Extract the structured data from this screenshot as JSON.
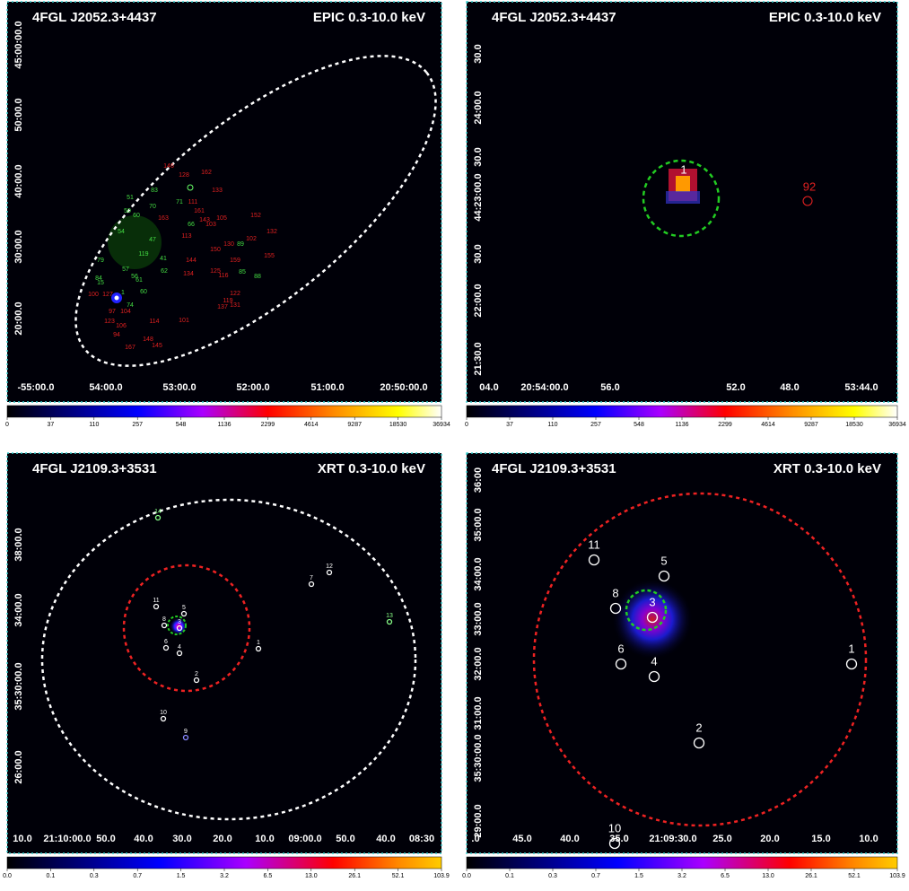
{
  "panels": [
    {
      "title": "4FGL J2052.3+4437",
      "band": "EPIC 0.3-10.0 keV",
      "x_ticks": [
        "-55:00.0",
        "54:00.0",
        "53:00.0",
        "52:00.0",
        "51:00.0",
        "20:50:00.0"
      ],
      "y_ticks": [
        "20:00.0",
        "30:00.0",
        "40:00.0",
        "50:00.0",
        "45:00:00.0"
      ],
      "colorbar": [
        "0",
        "37",
        "110",
        "257",
        "548",
        "1136",
        "2299",
        "4614",
        "9287",
        "18530",
        "36934"
      ],
      "sources": [
        "146",
        "128",
        "162",
        "133",
        "111",
        "161",
        "163",
        "152",
        "143",
        "105",
        "103",
        "113",
        "102",
        "132",
        "150",
        "130",
        "155",
        "159",
        "144",
        "134",
        "125",
        "116",
        "122",
        "119",
        "131",
        "137",
        "114",
        "101",
        "104",
        "106",
        "94",
        "148",
        "145",
        "167",
        "127",
        "123",
        "100",
        "97"
      ],
      "green_sources": [
        "51",
        "70",
        "71",
        "50",
        "60",
        "66",
        "54",
        "47",
        "89",
        "41",
        "119",
        "62",
        "85",
        "88",
        "79",
        "57",
        "84",
        "56",
        "61",
        "60",
        "74",
        "15",
        "83",
        "1"
      ]
    },
    {
      "title": "4FGL J2052.3+4437",
      "band": "EPIC 0.3-10.0 keV",
      "x_ticks": [
        "04.0",
        "20:54:00.0",
        "56.0",
        "52.0",
        "48.0",
        "53:44.0"
      ],
      "y_ticks": [
        "21:30.0",
        "22:00.0",
        "30.0",
        "44:23:00.0",
        "30.0",
        "24:00.0",
        "30.0"
      ],
      "colorbar": [
        "0",
        "37",
        "110",
        "257",
        "548",
        "1136",
        "2299",
        "4614",
        "9287",
        "18530",
        "36934"
      ],
      "sources": [
        "1",
        "92"
      ]
    },
    {
      "title": "4FGL J2109.3+3531",
      "band": "XRT 0.3-10.0 keV",
      "x_ticks": [
        "10.0",
        "21:10:00.0",
        "50.0",
        "40.0",
        "30.0",
        "20.0",
        "10.0",
        "09:00.0",
        "50.0",
        "40.0",
        "08:30"
      ],
      "y_ticks": [
        "26:00.0",
        "35:30:00.0",
        "34:00.0",
        "38:00.0"
      ],
      "colorbar": [
        "0.0",
        "0.1",
        "0.3",
        "0.7",
        "1.5",
        "3.2",
        "6.5",
        "13.0",
        "26.1",
        "52.1",
        "103.9"
      ],
      "sources": [
        "14",
        "11",
        "5",
        "8",
        "3",
        "6",
        "4",
        "2",
        "1",
        "7",
        "12",
        "13",
        "10",
        "9"
      ]
    },
    {
      "title": "4FGL J2109.3+3531",
      "band": "XRT 0.3-10.0 keV",
      "x_ticks": [
        ".0",
        "45.0",
        "40.0",
        "35.0",
        "21:09:30.0",
        "25.0",
        "20.0",
        "15.0",
        "10.0"
      ],
      "y_ticks": [
        "29:00.0",
        "35:30:00.0",
        "31:00.0",
        "32:00.0",
        "33:00.0",
        "34:00.0",
        "35:00.0",
        "36:00"
      ],
      "colorbar": [
        "0.0",
        "0.1",
        "0.3",
        "0.7",
        "1.5",
        "3.2",
        "6.5",
        "13.0",
        "26.1",
        "52.1",
        "103.9"
      ],
      "sources": [
        "11",
        "5",
        "8",
        "3",
        "6",
        "4",
        "1",
        "2",
        "10"
      ]
    }
  ]
}
